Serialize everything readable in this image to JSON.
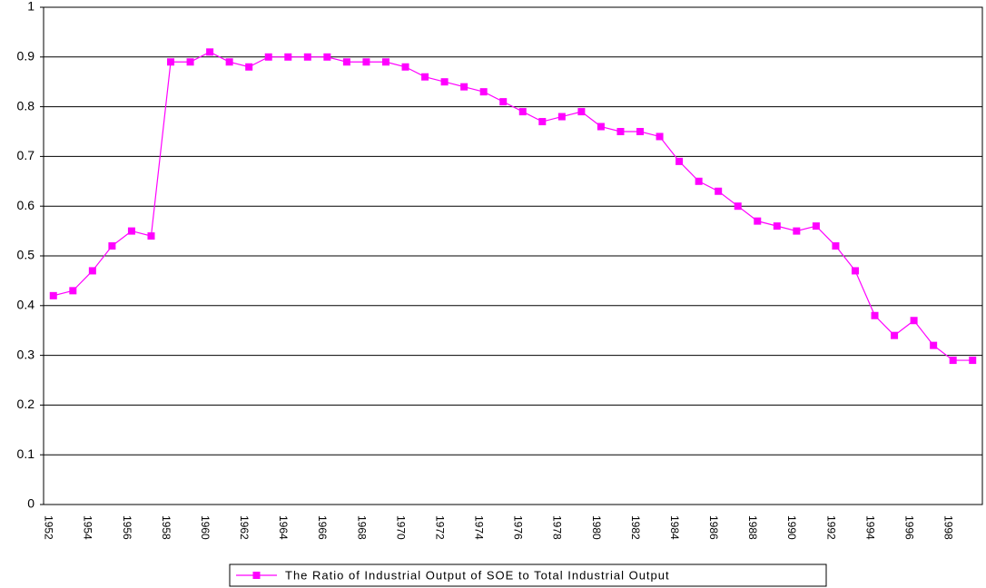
{
  "chart_data": {
    "type": "line",
    "categories": [
      "1952",
      null,
      "1954",
      null,
      "1956",
      null,
      "1958",
      null,
      "1960",
      null,
      "1962",
      null,
      "1964",
      null,
      "1966",
      null,
      "1968",
      null,
      "1970",
      null,
      "1972",
      null,
      "1974",
      null,
      "1976",
      null,
      "1978",
      null,
      "1980",
      null,
      "1982",
      null,
      "1984",
      null,
      "1986",
      null,
      "1988",
      null,
      "1990",
      null,
      "1992",
      null,
      "1994",
      null,
      "1996",
      null,
      "1998",
      null
    ],
    "series": [
      {
        "name": "The Ratio of Industrial Output of SOE to Total Industrial Output",
        "color": "#ff00ff",
        "values": [
          0.42,
          0.43,
          0.47,
          0.52,
          0.55,
          0.54,
          0.89,
          0.89,
          0.91,
          0.89,
          0.88,
          0.9,
          0.9,
          0.9,
          0.9,
          0.89,
          0.89,
          0.89,
          0.88,
          0.86,
          0.85,
          0.84,
          0.83,
          0.81,
          0.79,
          0.77,
          0.78,
          0.79,
          0.76,
          0.75,
          0.75,
          0.74,
          0.69,
          0.65,
          0.63,
          0.6,
          0.57,
          0.56,
          0.55,
          0.56,
          0.52,
          0.47,
          0.38,
          0.34,
          0.37,
          0.32,
          0.29,
          0.29
        ]
      }
    ],
    "ylim": [
      0,
      1
    ],
    "yticks": [
      0,
      0.1,
      0.2,
      0.3,
      0.4,
      0.5,
      0.6,
      0.7,
      0.8,
      0.9,
      1
    ],
    "grid": true,
    "legend": "bottom"
  }
}
